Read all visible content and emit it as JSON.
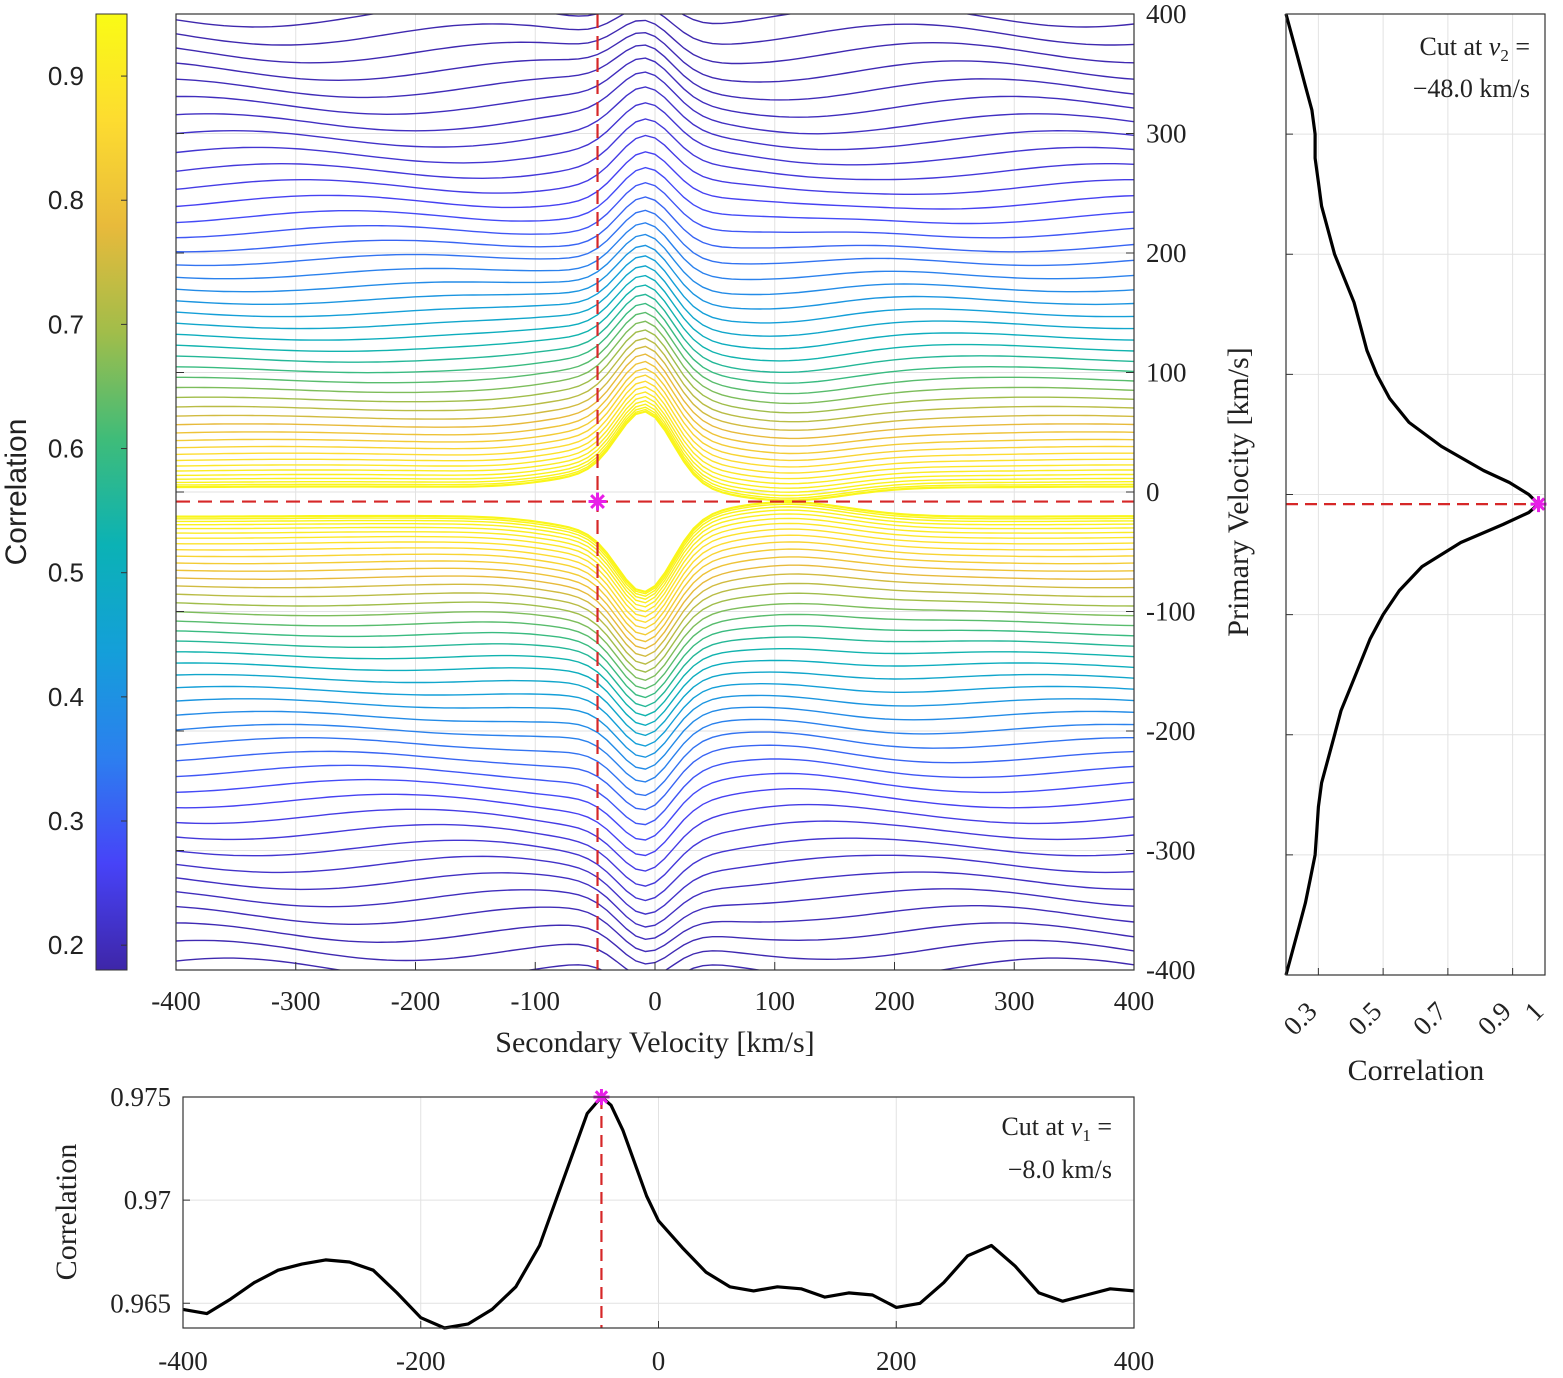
{
  "chart_data": [
    {
      "id": "main_contour",
      "type": "contour",
      "xlabel": "Secondary Velocity [km/s]",
      "ylabel": "Primary Velocity [km/s]",
      "xlim": [
        -400,
        400
      ],
      "ylim": [
        -400,
        400
      ],
      "xticks": [
        -400,
        -300,
        -200,
        -100,
        0,
        100,
        200,
        300,
        400
      ],
      "yticks": [
        400,
        300,
        200,
        100,
        0,
        -100,
        -200,
        -300,
        -400
      ],
      "ytick_labels": [
        "400",
        "300",
        "200",
        "100",
        "0",
        "-100",
        "-200",
        "-300",
        "-400"
      ],
      "grid": true,
      "peak": {
        "x": -48,
        "y": -8
      },
      "crosshair_color": "#d62728",
      "peak_marker_color": "#e81ee8",
      "colorbar": {
        "label": "Correlation",
        "range": [
          0.18,
          0.95
        ],
        "ticks": [
          0.9,
          0.8,
          0.7,
          0.6,
          0.5,
          0.4,
          0.3,
          0.2
        ],
        "colormap": [
          "#3e26a8",
          "#4743f8",
          "#2c7fef",
          "#149fd9",
          "#0bb2b5",
          "#3fbc79",
          "#a1bd4a",
          "#e8ba3b",
          "#fddc30",
          "#f9fb15"
        ]
      },
      "level_count": 90
    },
    {
      "id": "cut_v1",
      "type": "line",
      "annotation_line1": "Cut at ",
      "annotation_var": "v",
      "annotation_sub": "1",
      "annotation_eq": " =",
      "annotation_line2": "−8.0 km/s",
      "ylabel": "Correlation",
      "xlabel": "",
      "xlim": [
        -400,
        400
      ],
      "ylim": [
        0.9638,
        0.975
      ],
      "xticks": [
        -400,
        -200,
        0,
        200,
        400
      ],
      "yticks": [
        0.975,
        0.97,
        0.965
      ],
      "ytick_labels": [
        "0.975",
        "0.97",
        "0.965"
      ],
      "x": [
        -400,
        -380,
        -360,
        -340,
        -320,
        -300,
        -280,
        -260,
        -240,
        -220,
        -200,
        -180,
        -160,
        -140,
        -120,
        -100,
        -80,
        -60,
        -48,
        -40,
        -30,
        -20,
        -10,
        0,
        20,
        40,
        60,
        80,
        100,
        120,
        140,
        160,
        180,
        200,
        220,
        240,
        260,
        280,
        300,
        320,
        340,
        360,
        380,
        400
      ],
      "values": [
        0.9647,
        0.9645,
        0.9652,
        0.966,
        0.9666,
        0.9669,
        0.9671,
        0.967,
        0.9666,
        0.9655,
        0.9643,
        0.9638,
        0.964,
        0.9647,
        0.9658,
        0.9678,
        0.971,
        0.9742,
        0.975,
        0.9746,
        0.9734,
        0.9718,
        0.9702,
        0.969,
        0.9677,
        0.9665,
        0.9658,
        0.9656,
        0.9658,
        0.9657,
        0.9653,
        0.9655,
        0.9654,
        0.9648,
        0.965,
        0.966,
        0.9673,
        0.9678,
        0.9668,
        0.9655,
        0.9651,
        0.9654,
        0.9657,
        0.9656
      ],
      "peak": {
        "x": -48,
        "y": 0.975
      },
      "marker_color": "#e81ee8",
      "vline_color": "#d62728"
    },
    {
      "id": "cut_v2",
      "type": "line",
      "orientation": "vertical",
      "annotation_line1": "Cut at ",
      "annotation_var": "v",
      "annotation_sub": "2",
      "annotation_eq": " =",
      "annotation_line2": "−48.0 km/s",
      "xlabel": "Correlation",
      "ylabel": "",
      "xlim": [
        0.2,
        1.0
      ],
      "ylim": [
        -400,
        400
      ],
      "xticks": [
        0.3,
        0.5,
        0.7,
        0.9,
        1
      ],
      "xtick_labels": [
        "0.3",
        "0.5",
        "0.7",
        "0.9",
        "1"
      ],
      "yticks": [
        300,
        200,
        100,
        0,
        -100,
        -200,
        -300
      ],
      "v1": [
        400,
        380,
        360,
        340,
        320,
        300,
        280,
        260,
        240,
        220,
        200,
        180,
        160,
        140,
        120,
        100,
        80,
        60,
        40,
        20,
        10,
        0,
        -8,
        -15,
        -25,
        -40,
        -60,
        -80,
        -100,
        -120,
        -140,
        -160,
        -180,
        -200,
        -220,
        -240,
        -260,
        -280,
        -300,
        -320,
        -340,
        -360,
        -380,
        -400
      ],
      "values": [
        0.2,
        0.22,
        0.24,
        0.26,
        0.28,
        0.29,
        0.29,
        0.3,
        0.31,
        0.33,
        0.35,
        0.38,
        0.41,
        0.43,
        0.45,
        0.48,
        0.52,
        0.58,
        0.68,
        0.81,
        0.89,
        0.95,
        0.98,
        0.95,
        0.87,
        0.74,
        0.62,
        0.55,
        0.5,
        0.46,
        0.43,
        0.4,
        0.37,
        0.35,
        0.33,
        0.31,
        0.3,
        0.295,
        0.29,
        0.275,
        0.26,
        0.24,
        0.22,
        0.2
      ],
      "peak": {
        "x": 0.98,
        "y": -8
      },
      "marker_color": "#e81ee8",
      "hline_color": "#d62728"
    }
  ]
}
